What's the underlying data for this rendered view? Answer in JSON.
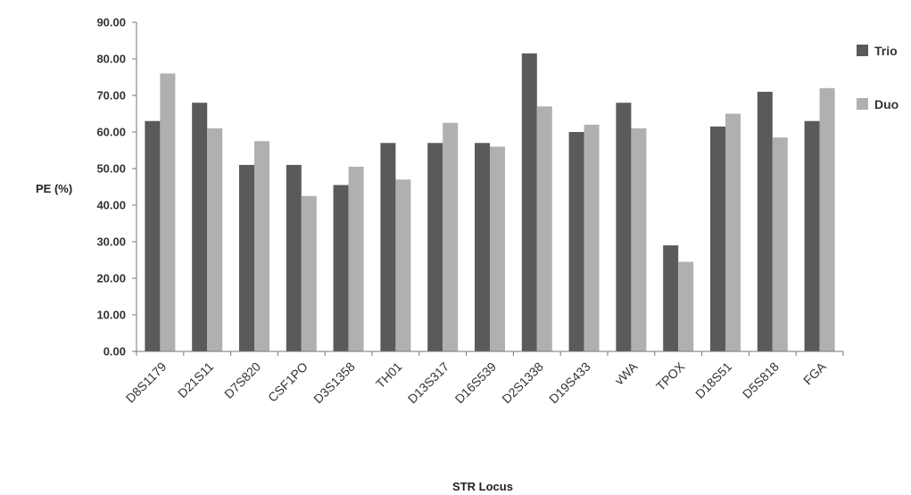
{
  "chart_data": {
    "type": "bar",
    "categories": [
      "D8S1179",
      "D21S11",
      "D7S820",
      "CSF1PO",
      "D3S1358",
      "TH01",
      "D13S317",
      "D16S539",
      "D2S1338",
      "D19S433",
      "vWA",
      "TPOX",
      "D18S51",
      "D5S818",
      "FGA"
    ],
    "series": [
      {
        "name": "Trio",
        "color": "#5a5a5a",
        "values": [
          63.0,
          68.0,
          51.0,
          51.0,
          45.5,
          57.0,
          57.0,
          57.0,
          81.5,
          60.0,
          68.0,
          29.0,
          61.5,
          71.0,
          63.0
        ]
      },
      {
        "name": "Duo",
        "color": "#b0b0b0",
        "values": [
          76.0,
          61.0,
          57.5,
          42.5,
          50.5,
          47.0,
          62.5,
          56.0,
          67.0,
          62.0,
          61.0,
          24.5,
          65.0,
          58.5,
          72.0
        ]
      }
    ],
    "xlabel": "STR Locus",
    "ylabel": "PE (%)",
    "ylim": [
      0,
      90
    ],
    "yticks": [
      "0.00",
      "10.00",
      "20.00",
      "30.00",
      "40.00",
      "50.00",
      "60.00",
      "70.00",
      "80.00",
      "90.00"
    ],
    "grid": false,
    "legend": "right"
  }
}
